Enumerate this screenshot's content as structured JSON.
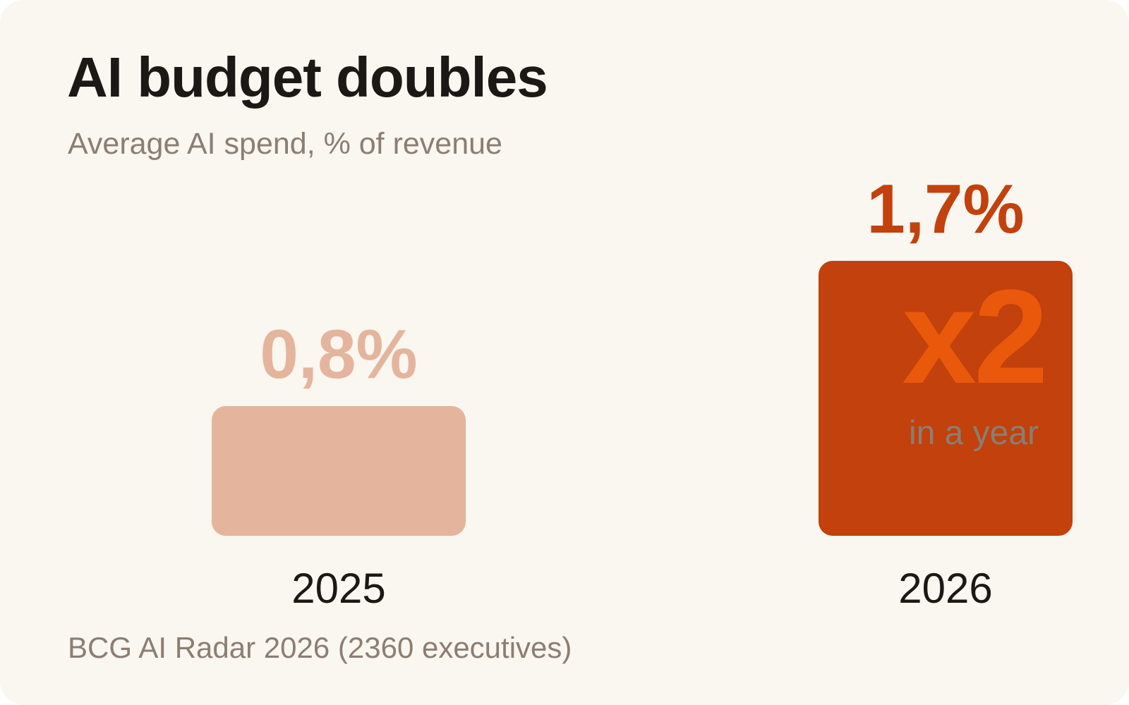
{
  "title": "AI budget doubles",
  "subtitle": "Average AI spend, % of revenue",
  "source": "BCG AI Radar 2026 (2360 executives)",
  "colors": {
    "background": "#faf6f0",
    "bar_2025": "#e4b59c",
    "bar_2026": "#c2410c",
    "multiplier": "#ea580c",
    "note": "#8b7e72",
    "label": "#1c1815"
  },
  "chart_data": {
    "type": "bar",
    "categories": [
      "2025",
      "2026"
    ],
    "values": [
      0.8,
      1.7
    ],
    "value_labels": [
      "0,8%",
      "1,7%"
    ],
    "title": "AI budget doubles",
    "subtitle": "Average AI spend, % of revenue",
    "ylim": [
      0,
      1.7
    ],
    "grid": false,
    "legend": "none",
    "annotation": {
      "category": "2026",
      "multiplier": "x2",
      "note": "in a year"
    }
  }
}
